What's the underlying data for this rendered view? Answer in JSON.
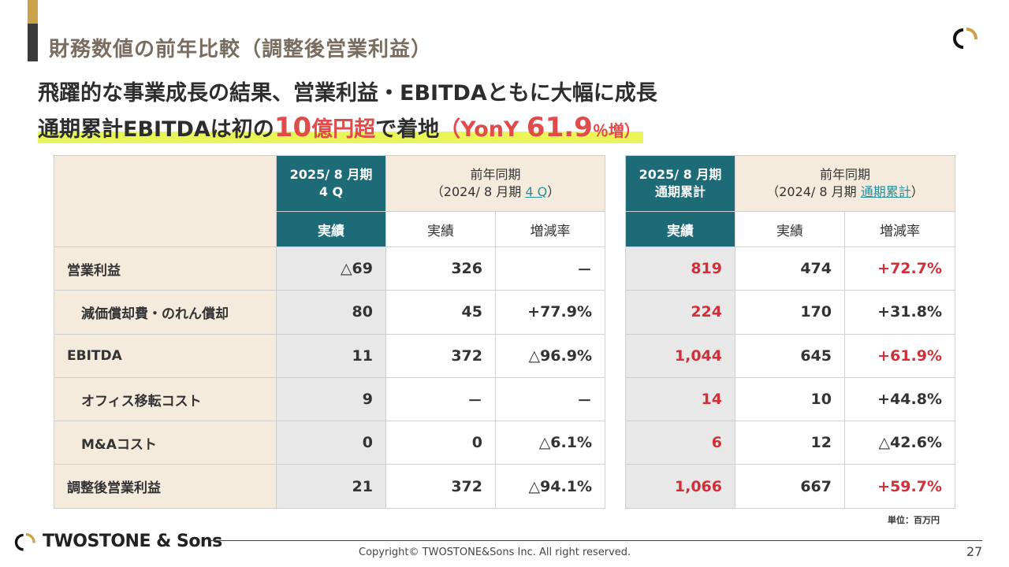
{
  "header": {
    "title": "財務数値の前年比較（調整後営業利益）",
    "headline1": "飛躍的な事業成長の結果、営業利益・EBITDAともに大幅に成長",
    "headline2_a": "通期累計EBITDAは初の",
    "headline2_b": "10",
    "headline2_c": "億円超",
    "headline2_d": "で着地",
    "headline2_e": "（YonY ",
    "headline2_f": "61.9",
    "headline2_g": "％増）"
  },
  "table_q": {
    "col1_line1": "2025/ 8 月期",
    "col1_line2": "4 Q",
    "col2_line1": "前年同期",
    "col2_line2_pre": "（2024/ 8 月期 ",
    "col2_line2_link": "4 Q",
    "col2_line2_post": "）",
    "sub_actual": "実績",
    "sub_prev": "実績",
    "sub_rate": "増減率"
  },
  "table_fy": {
    "col1_line1": "2025/ 8 月期",
    "col1_line2": "通期累計",
    "col2_line1": "前年同期",
    "col2_line2_pre": "（2024/ 8 月期 ",
    "col2_line2_link": "通期累計",
    "col2_line2_post": "）",
    "sub_actual": "実績",
    "sub_prev": "実績",
    "sub_rate": "増減率"
  },
  "rows": [
    {
      "label": "営業利益",
      "sub": false,
      "q": [
        "△69",
        "326",
        "－"
      ],
      "fy": [
        "819",
        "474",
        "+72.7%"
      ],
      "fy_rate_red": true
    },
    {
      "label": "減価償却費・のれん償却",
      "sub": true,
      "q": [
        "80",
        "45",
        "+77.9%"
      ],
      "fy": [
        "224",
        "170",
        "+31.8%"
      ],
      "fy_rate_red": false
    },
    {
      "label": "EBITDA",
      "sub": false,
      "q": [
        "11",
        "372",
        "△96.9%"
      ],
      "fy": [
        "1,044",
        "645",
        "+61.9%"
      ],
      "fy_rate_red": true
    },
    {
      "label": "オフィス移転コスト",
      "sub": true,
      "q": [
        "9",
        "－",
        "－"
      ],
      "fy": [
        "14",
        "10",
        "+44.8%"
      ],
      "fy_rate_red": false
    },
    {
      "label": "M&Aコスト",
      "sub": true,
      "q": [
        "0",
        "0",
        "△6.1%"
      ],
      "fy": [
        "6",
        "12",
        "△42.6%"
      ],
      "fy_rate_red": false
    },
    {
      "label": "調整後営業利益",
      "sub": false,
      "q": [
        "21",
        "372",
        "△94.1%"
      ],
      "fy": [
        "1,066",
        "667",
        "+59.7%"
      ],
      "fy_rate_red": true
    }
  ],
  "unit": "単位：百万円",
  "footer": {
    "brand": "TWOSTONE & Sons",
    "copyright": "Copyright© TWOSTONE&Sons Inc. All right reserved.",
    "page": "27"
  },
  "colors": {
    "teal": "#1e6b78",
    "gold": "#c9a24a",
    "red": "#d0303a",
    "highlight": "#eaf55a"
  }
}
